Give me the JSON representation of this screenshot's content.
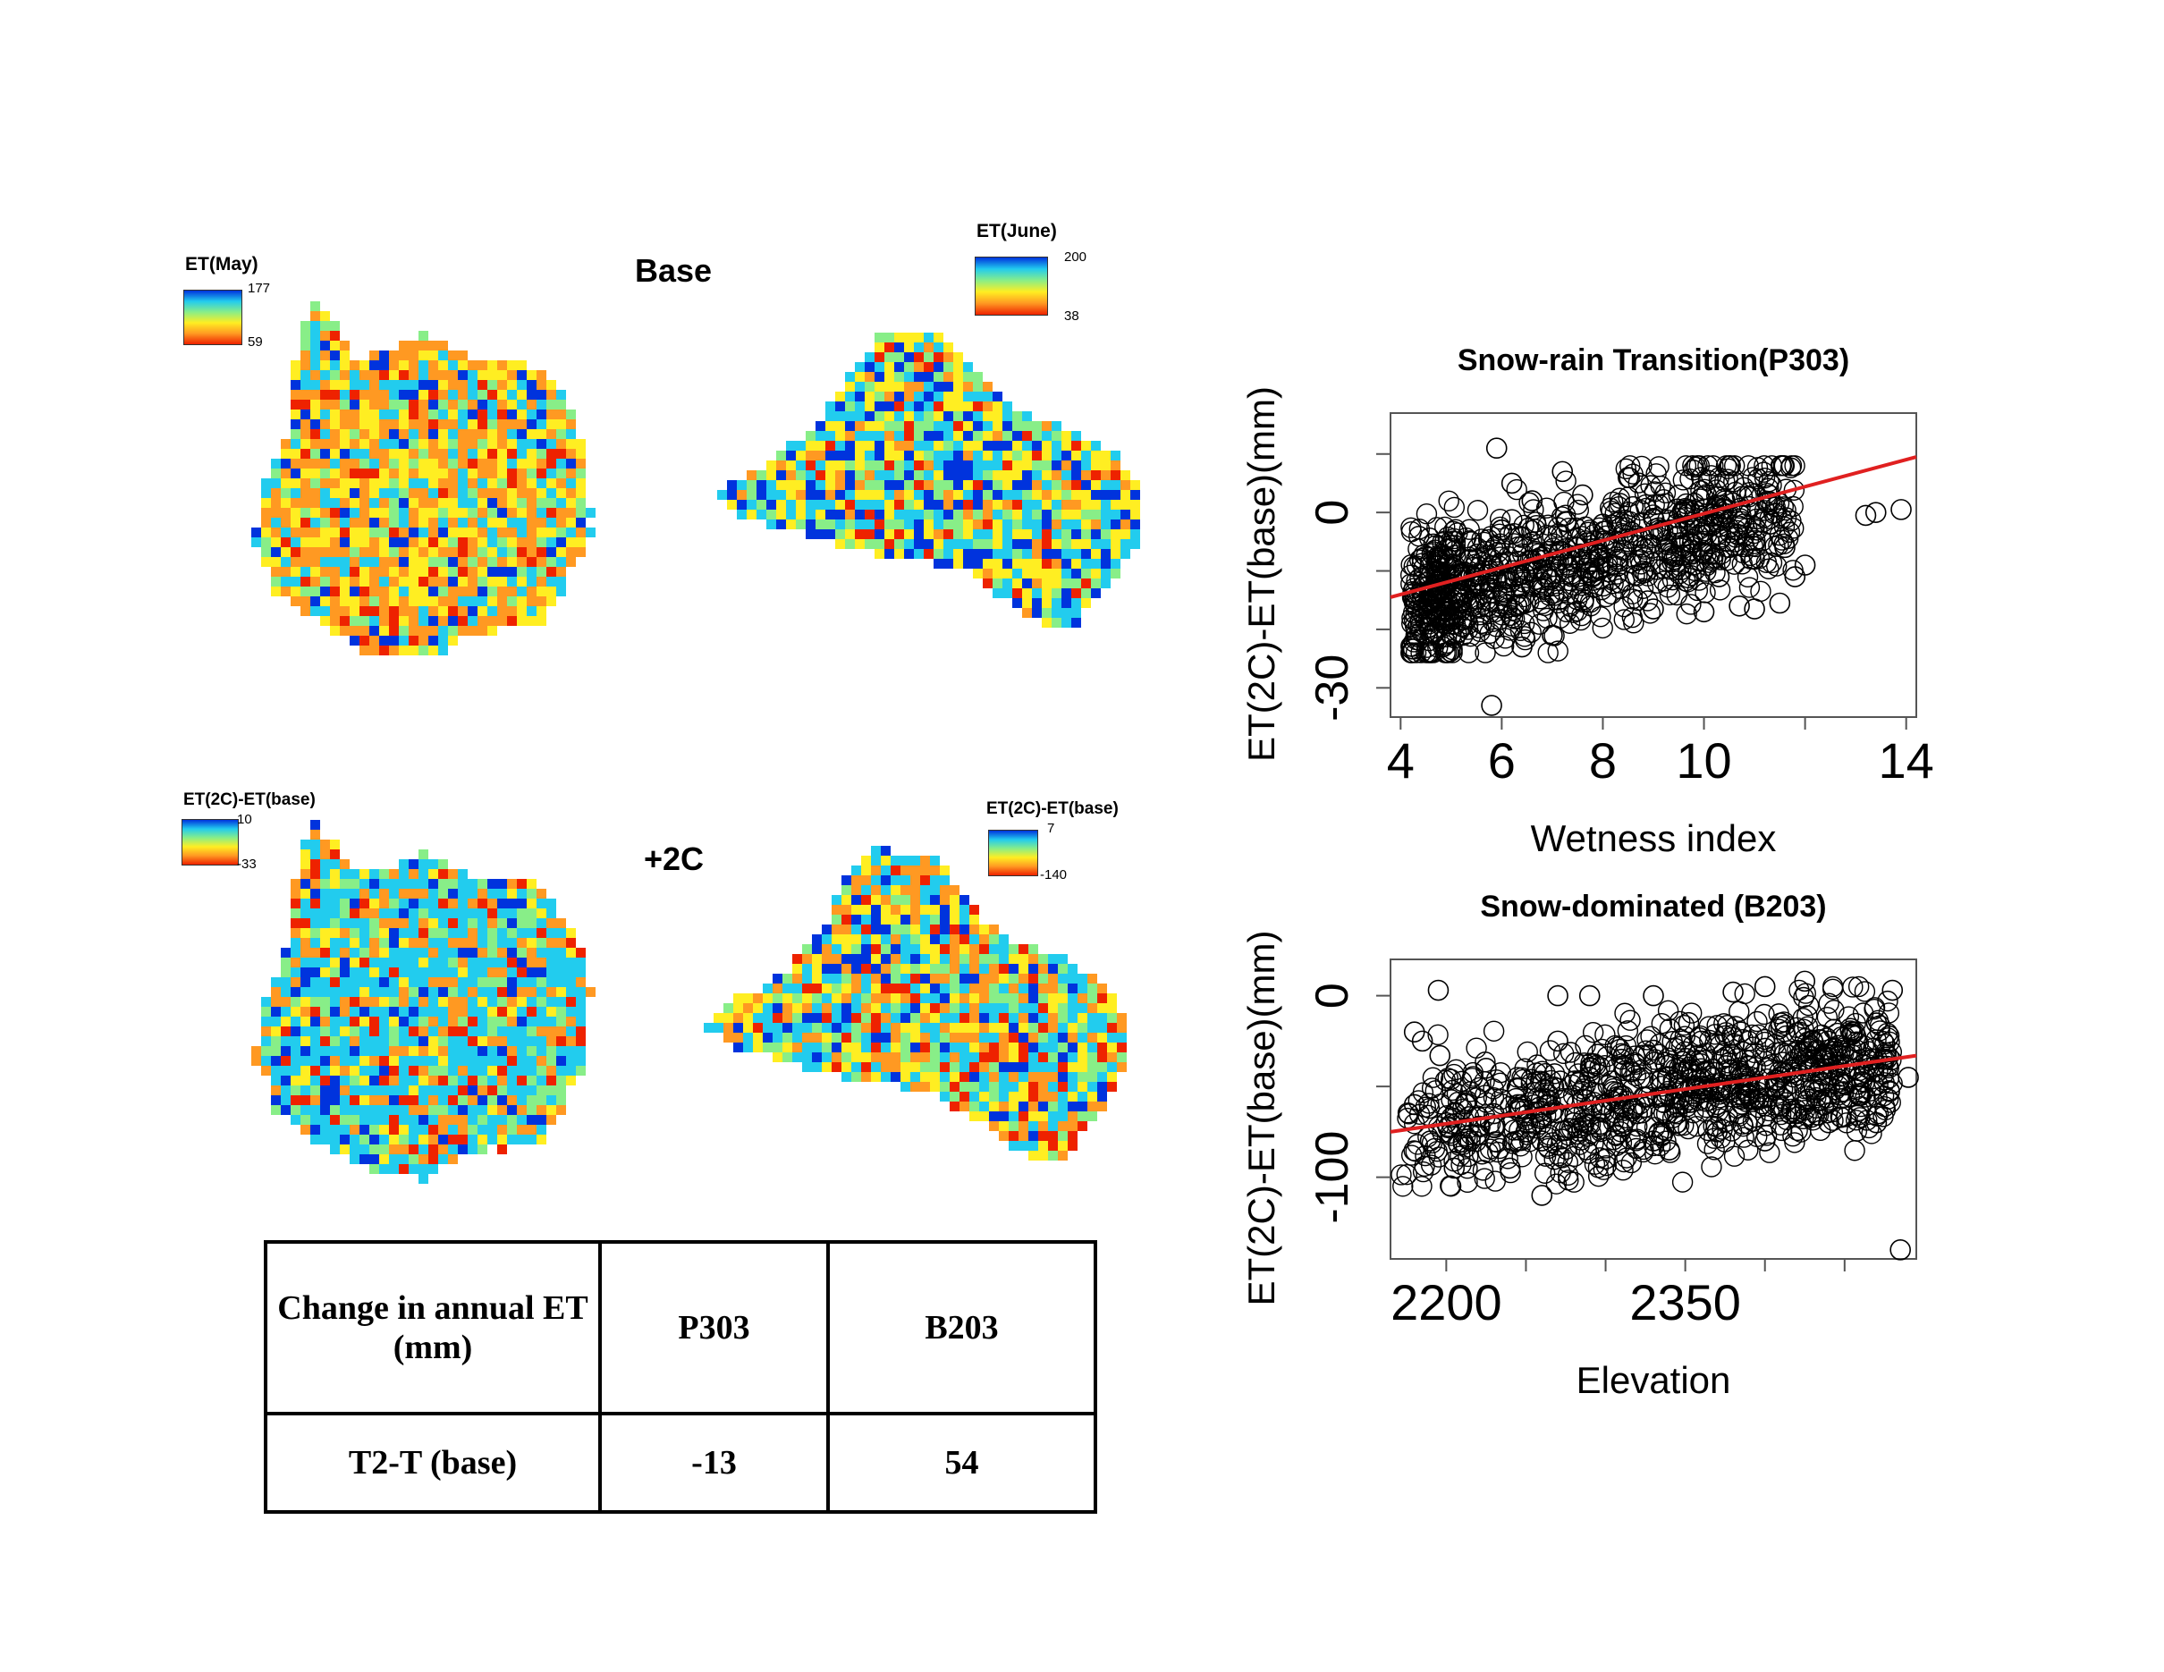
{
  "maps": {
    "base_label": "Base",
    "plus2_label": "+2C",
    "legend_may": {
      "title": "ET(May)",
      "max": "177",
      "min": "59"
    },
    "legend_june": {
      "title": "ET(June)",
      "max": "200",
      "min": "38"
    },
    "legend_diff_left": {
      "title": "ET(2C)-ET(base)",
      "max": "10",
      "min": "-33"
    },
    "legend_diff_right": {
      "title": "ET(2C)-ET(base)",
      "max": "7",
      "min": "-140"
    },
    "colors": {
      "blue": "#0033dd",
      "cyan": "#22ccee",
      "green": "#88ee88",
      "yellow": "#ffee22",
      "orange": "#ff9922",
      "red": "#ee2200"
    }
  },
  "table": {
    "header": [
      "Change in  annual ET (mm)",
      "P303",
      "B203"
    ],
    "row": [
      "T2-T (base)",
      "-13",
      "54"
    ]
  },
  "chart_data": [
    {
      "type": "scatter",
      "title": "Snow-rain Transition(P303)",
      "xlabel": "Wetness index",
      "ylabel": "ET(2C)-ET(base)(mm)",
      "xlim": [
        3.8,
        14.2
      ],
      "ylim": [
        -35,
        17
      ],
      "xticks": [
        4,
        6,
        8,
        10,
        12,
        14
      ],
      "xtick_labels": [
        "4",
        "6",
        "8",
        "10",
        "",
        "14"
      ],
      "yticks": [
        -30,
        -20,
        -10,
        0,
        10
      ],
      "ytick_labels": [
        "-30",
        "",
        "",
        "0",
        ""
      ],
      "trend_line": {
        "x": [
          3.8,
          14.2
        ],
        "y": [
          -14.5,
          9.5
        ],
        "color": "#e02020"
      },
      "marker": "open-circle",
      "points": [
        [
          5.8,
          -33
        ],
        [
          5.9,
          11
        ],
        [
          13.2,
          -0.5
        ],
        [
          13.4,
          0
        ],
        [
          13.9,
          0.5
        ],
        [
          10.7,
          -16
        ],
        [
          11.0,
          -16.5
        ],
        [
          11.5,
          -15.5
        ],
        [
          10.0,
          -17
        ],
        [
          9.0,
          -16.5
        ],
        [
          5.0,
          -21
        ],
        [
          6.4,
          -23
        ],
        [
          7.0,
          -21
        ],
        [
          11.8,
          -11
        ],
        [
          12.0,
          -9
        ],
        [
          10.9,
          1
        ],
        [
          9.5,
          3
        ],
        [
          8.5,
          6
        ],
        [
          7.2,
          7
        ],
        [
          6.2,
          5
        ],
        [
          4.5,
          -12
        ],
        [
          4.8,
          -18
        ],
        [
          4.3,
          -15
        ],
        [
          5.5,
          -8
        ],
        [
          6.0,
          -3
        ],
        [
          6.5,
          -10
        ],
        [
          7.0,
          -4
        ],
        [
          7.5,
          -6
        ],
        [
          8.0,
          -2
        ],
        [
          8.5,
          -5
        ],
        [
          9.0,
          -1
        ],
        [
          9.5,
          -4
        ],
        [
          10.0,
          -2
        ],
        [
          10.5,
          -6
        ],
        [
          11.0,
          -8
        ],
        [
          5.2,
          -14
        ],
        [
          5.6,
          -19
        ],
        [
          6.3,
          -16
        ],
        [
          6.8,
          -12
        ],
        [
          7.3,
          -9
        ],
        [
          7.8,
          -11
        ],
        [
          8.3,
          -8
        ],
        [
          8.8,
          -10
        ],
        [
          9.3,
          -7
        ],
        [
          9.8,
          -9
        ],
        [
          10.3,
          -11
        ],
        [
          10.8,
          -4
        ],
        [
          11.3,
          -2
        ],
        [
          11.6,
          -6
        ],
        [
          6.6,
          2
        ],
        [
          7.6,
          3
        ],
        [
          8.6,
          1
        ],
        [
          9.6,
          0
        ],
        [
          5.4,
          -5
        ],
        [
          4.9,
          -9
        ]
      ]
    },
    {
      "type": "scatter",
      "title": "Snow-dominated (B203)",
      "xlabel": "Elevation",
      "ylabel": "ET(2C)-ET(base)(mm)",
      "xlim": [
        2165,
        2495
      ],
      "ylim": [
        -145,
        20
      ],
      "xticks": [
        2200,
        2250,
        2300,
        2350,
        2400,
        2450
      ],
      "xtick_labels": [
        "2200",
        "",
        "",
        "2350",
        "",
        ""
      ],
      "yticks": [
        -100,
        -50,
        0
      ],
      "ytick_labels": [
        "-100",
        "",
        "0"
      ],
      "trend_line": {
        "x": [
          2165,
          2495
        ],
        "y": [
          -75,
          -33
        ],
        "color": "#e02020"
      },
      "marker": "open-circle",
      "points": [
        [
          2195,
          3
        ],
        [
          2180,
          -20
        ],
        [
          2185,
          -25
        ],
        [
          2196,
          -33
        ],
        [
          2260,
          -110
        ],
        [
          2485,
          -140
        ],
        [
          2480,
          3
        ],
        [
          2425,
          8
        ],
        [
          2400,
          5
        ],
        [
          2380,
          2
        ],
        [
          2330,
          0
        ],
        [
          2290,
          0
        ],
        [
          2270,
          0
        ],
        [
          2205,
          -95
        ],
        [
          2190,
          -80
        ],
        [
          2240,
          -95
        ],
        [
          2300,
          -90
        ],
        [
          2340,
          -85
        ],
        [
          2260,
          -80
        ],
        [
          2330,
          -80
        ],
        [
          2420,
          -65
        ],
        [
          2470,
          -70
        ],
        [
          2490,
          -45
        ],
        [
          2475,
          -35
        ],
        [
          2460,
          -55
        ],
        [
          2440,
          -40
        ],
        [
          2410,
          -45
        ],
        [
          2390,
          -55
        ],
        [
          2370,
          -60
        ],
        [
          2350,
          -50
        ],
        [
          2320,
          -65
        ],
        [
          2300,
          -60
        ],
        [
          2280,
          -70
        ],
        [
          2250,
          -75
        ],
        [
          2230,
          -65
        ],
        [
          2215,
          -80
        ],
        [
          2200,
          -70
        ],
        [
          2180,
          -60
        ],
        [
          2310,
          -35
        ],
        [
          2330,
          -30
        ],
        [
          2360,
          -25
        ],
        [
          2385,
          -20
        ],
        [
          2410,
          -15
        ],
        [
          2430,
          -25
        ],
        [
          2455,
          -20
        ],
        [
          2470,
          -15
        ],
        [
          2290,
          -45
        ],
        [
          2265,
          -50
        ],
        [
          2245,
          -60
        ],
        [
          2345,
          -70
        ],
        [
          2370,
          -75
        ],
        [
          2400,
          -80
        ],
        [
          2440,
          -70
        ],
        [
          2225,
          -40
        ],
        [
          2270,
          -25
        ]
      ]
    }
  ]
}
